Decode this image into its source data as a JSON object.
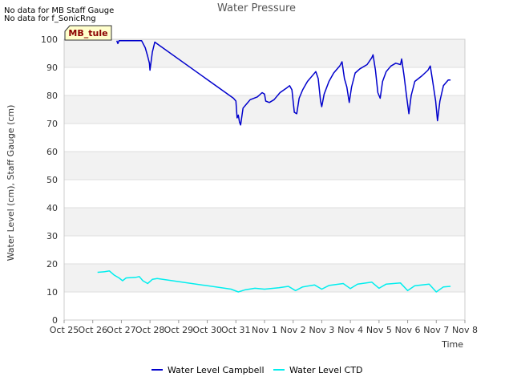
{
  "notices": [
    "No data for MB Staff Gauge",
    "No data for f_SonicRng"
  ],
  "station_label": "MB_tule",
  "chart_data": {
    "type": "line",
    "title": "Water Pressure",
    "xlabel": "Time",
    "ylabel": "Water Level (cm), Staff Gauge (cm)",
    "ylim": [
      0,
      100
    ],
    "yticks": [
      0,
      10,
      20,
      30,
      40,
      50,
      60,
      70,
      80,
      90,
      100
    ],
    "xlim": [
      "Oct 25",
      "Nov 8"
    ],
    "xticks": [
      "Oct 25",
      "Oct 26",
      "Oct 27",
      "Oct 28",
      "Oct 29",
      "Oct 30",
      "Oct 31",
      "Nov 1",
      "Nov 2",
      "Nov 3",
      "Nov 4",
      "Nov 5",
      "Nov 6",
      "Nov 7",
      "Nov 8"
    ],
    "grid": true,
    "background_bands": "alternating grey",
    "legend_position": "bottom",
    "series": [
      {
        "name": "Water Level Campbell",
        "color": "#0000cc",
        "points": [
          [
            "Oct 26 20:10",
            99.5
          ],
          [
            "Oct 26 21:00",
            98.5
          ],
          [
            "Oct 26 22:00",
            99.5
          ],
          [
            "Oct 27 06:00",
            99.5
          ],
          [
            "Oct 27 17:00",
            99.5
          ],
          [
            "Oct 27 20:00",
            97.0
          ],
          [
            "Oct 27 22:00",
            94.0
          ],
          [
            "Oct 27 23:30",
            91.5
          ],
          [
            "Oct 28 00:00",
            89.0
          ],
          [
            "Oct 28 02:00",
            95.5
          ],
          [
            "Oct 28 04:00",
            99.0
          ],
          [
            "Oct 30 22:00",
            79.0
          ],
          [
            "Oct 31 00:00",
            78.0
          ],
          [
            "Oct 31 01:00",
            72.0
          ],
          [
            "Oct 31 02:00",
            73.0
          ],
          [
            "Oct 31 03:00",
            70.5
          ],
          [
            "Oct 31 04:00",
            69.5
          ],
          [
            "Oct 31 06:00",
            75.5
          ],
          [
            "Oct 31 09:00",
            77.0
          ],
          [
            "Oct 31 12:00",
            78.5
          ],
          [
            "Oct 31 18:00",
            79.5
          ],
          [
            "Oct 31 22:00",
            81.0
          ],
          [
            "Nov 1 00:00",
            80.5
          ],
          [
            "Nov 1 01:00",
            78.0
          ],
          [
            "Nov 1 04:00",
            77.5
          ],
          [
            "Nov 1 08:00",
            78.5
          ],
          [
            "Nov 1 13:00",
            81.0
          ],
          [
            "Nov 1 18:00",
            82.5
          ],
          [
            "Nov 1 21:00",
            83.5
          ],
          [
            "Nov 1 23:00",
            82.0
          ],
          [
            "Nov 2 01:00",
            74.0
          ],
          [
            "Nov 2 03:00",
            73.5
          ],
          [
            "Nov 2 05:00",
            79.0
          ],
          [
            "Nov 2 08:00",
            82.0
          ],
          [
            "Nov 2 12:00",
            85.0
          ],
          [
            "Nov 2 17:00",
            87.5
          ],
          [
            "Nov 2 19:00",
            88.5
          ],
          [
            "Nov 2 21:00",
            86.0
          ],
          [
            "Nov 2 23:00",
            78.0
          ],
          [
            "Nov 3 00:00",
            76.0
          ],
          [
            "Nov 3 02:00",
            80.5
          ],
          [
            "Nov 3 06:00",
            85.0
          ],
          [
            "Nov 3 10:00",
            88.0
          ],
          [
            "Nov 3 15:00",
            90.5
          ],
          [
            "Nov 3 17:00",
            92.0
          ],
          [
            "Nov 3 19:00",
            86.0
          ],
          [
            "Nov 3 21:00",
            83.0
          ],
          [
            "Nov 3 23:00",
            77.5
          ],
          [
            "Nov 4 01:00",
            83.0
          ],
          [
            "Nov 4 04:00",
            88.0
          ],
          [
            "Nov 4 08:00",
            89.5
          ],
          [
            "Nov 4 14:00",
            91.0
          ],
          [
            "Nov 4 18:00",
            93.5
          ],
          [
            "Nov 4 19:00",
            94.5
          ],
          [
            "Nov 4 21:00",
            89.0
          ],
          [
            "Nov 4 23:00",
            81.0
          ],
          [
            "Nov 5 01:00",
            79.0
          ],
          [
            "Nov 5 03:00",
            85.0
          ],
          [
            "Nov 5 06:00",
            88.5
          ],
          [
            "Nov 5 10:00",
            90.5
          ],
          [
            "Nov 5 14:00",
            91.5
          ],
          [
            "Nov 5 18:00",
            91.0
          ],
          [
            "Nov 5 19:00",
            93.0
          ],
          [
            "Nov 5 21:00",
            87.0
          ],
          [
            "Nov 5 23:00",
            80.0
          ],
          [
            "Nov 6 01:00",
            73.5
          ],
          [
            "Nov 6 03:00",
            80.0
          ],
          [
            "Nov 6 06:00",
            85.0
          ],
          [
            "Nov 6 12:00",
            87.0
          ],
          [
            "Nov 6 17:00",
            89.0
          ],
          [
            "Nov 6 19:00",
            90.5
          ],
          [
            "Nov 6 21:00",
            85.0
          ],
          [
            "Nov 6 23:30",
            78.0
          ],
          [
            "Nov 7 01:00",
            71.0
          ],
          [
            "Nov 7 03:00",
            78.0
          ],
          [
            "Nov 7 06:00",
            83.5
          ],
          [
            "Nov 7 10:00",
            85.5
          ],
          [
            "Nov 7 12:00",
            85.5
          ]
        ]
      },
      {
        "name": "Water Level CTD",
        "color": "#00eeee",
        "points": [
          [
            "Oct 26 04:00",
            17.0
          ],
          [
            "Oct 26 10:00",
            17.2
          ],
          [
            "Oct 26 14:00",
            17.5
          ],
          [
            "Oct 26 18:00",
            16.0
          ],
          [
            "Oct 26 22:00",
            15.0
          ],
          [
            "Oct 27 01:00",
            14.0
          ],
          [
            "Oct 27 04:00",
            15.0
          ],
          [
            "Oct 27 12:00",
            15.2
          ],
          [
            "Oct 27 15:00",
            15.5
          ],
          [
            "Oct 27 18:00",
            14.0
          ],
          [
            "Oct 27 22:00",
            13.0
          ],
          [
            "Oct 28 02:00",
            14.5
          ],
          [
            "Oct 28 06:00",
            14.8
          ],
          [
            "Oct 30 20:00",
            11.0
          ],
          [
            "Oct 31 02:00",
            10.0
          ],
          [
            "Oct 31 08:00",
            10.8
          ],
          [
            "Oct 31 16:00",
            11.3
          ],
          [
            "Nov 1 00:00",
            11.0
          ],
          [
            "Nov 1 12:00",
            11.5
          ],
          [
            "Nov 1 20:00",
            12.0
          ],
          [
            "Nov 2 02:00",
            10.5
          ],
          [
            "Nov 2 08:00",
            11.8
          ],
          [
            "Nov 2 18:00",
            12.5
          ],
          [
            "Nov 3 00:00",
            11.0
          ],
          [
            "Nov 3 06:00",
            12.3
          ],
          [
            "Nov 3 18:00",
            13.0
          ],
          [
            "Nov 4 00:00",
            11.2
          ],
          [
            "Nov 4 06:00",
            12.8
          ],
          [
            "Nov 4 18:00",
            13.5
          ],
          [
            "Nov 5 00:00",
            11.3
          ],
          [
            "Nov 5 06:00",
            12.8
          ],
          [
            "Nov 5 18:00",
            13.2
          ],
          [
            "Nov 6 00:00",
            10.5
          ],
          [
            "Nov 6 06:00",
            12.2
          ],
          [
            "Nov 6 18:00",
            12.8
          ],
          [
            "Nov 7 00:00",
            10.0
          ],
          [
            "Nov 7 06:00",
            11.8
          ],
          [
            "Nov 7 12:00",
            12.0
          ]
        ]
      }
    ]
  }
}
